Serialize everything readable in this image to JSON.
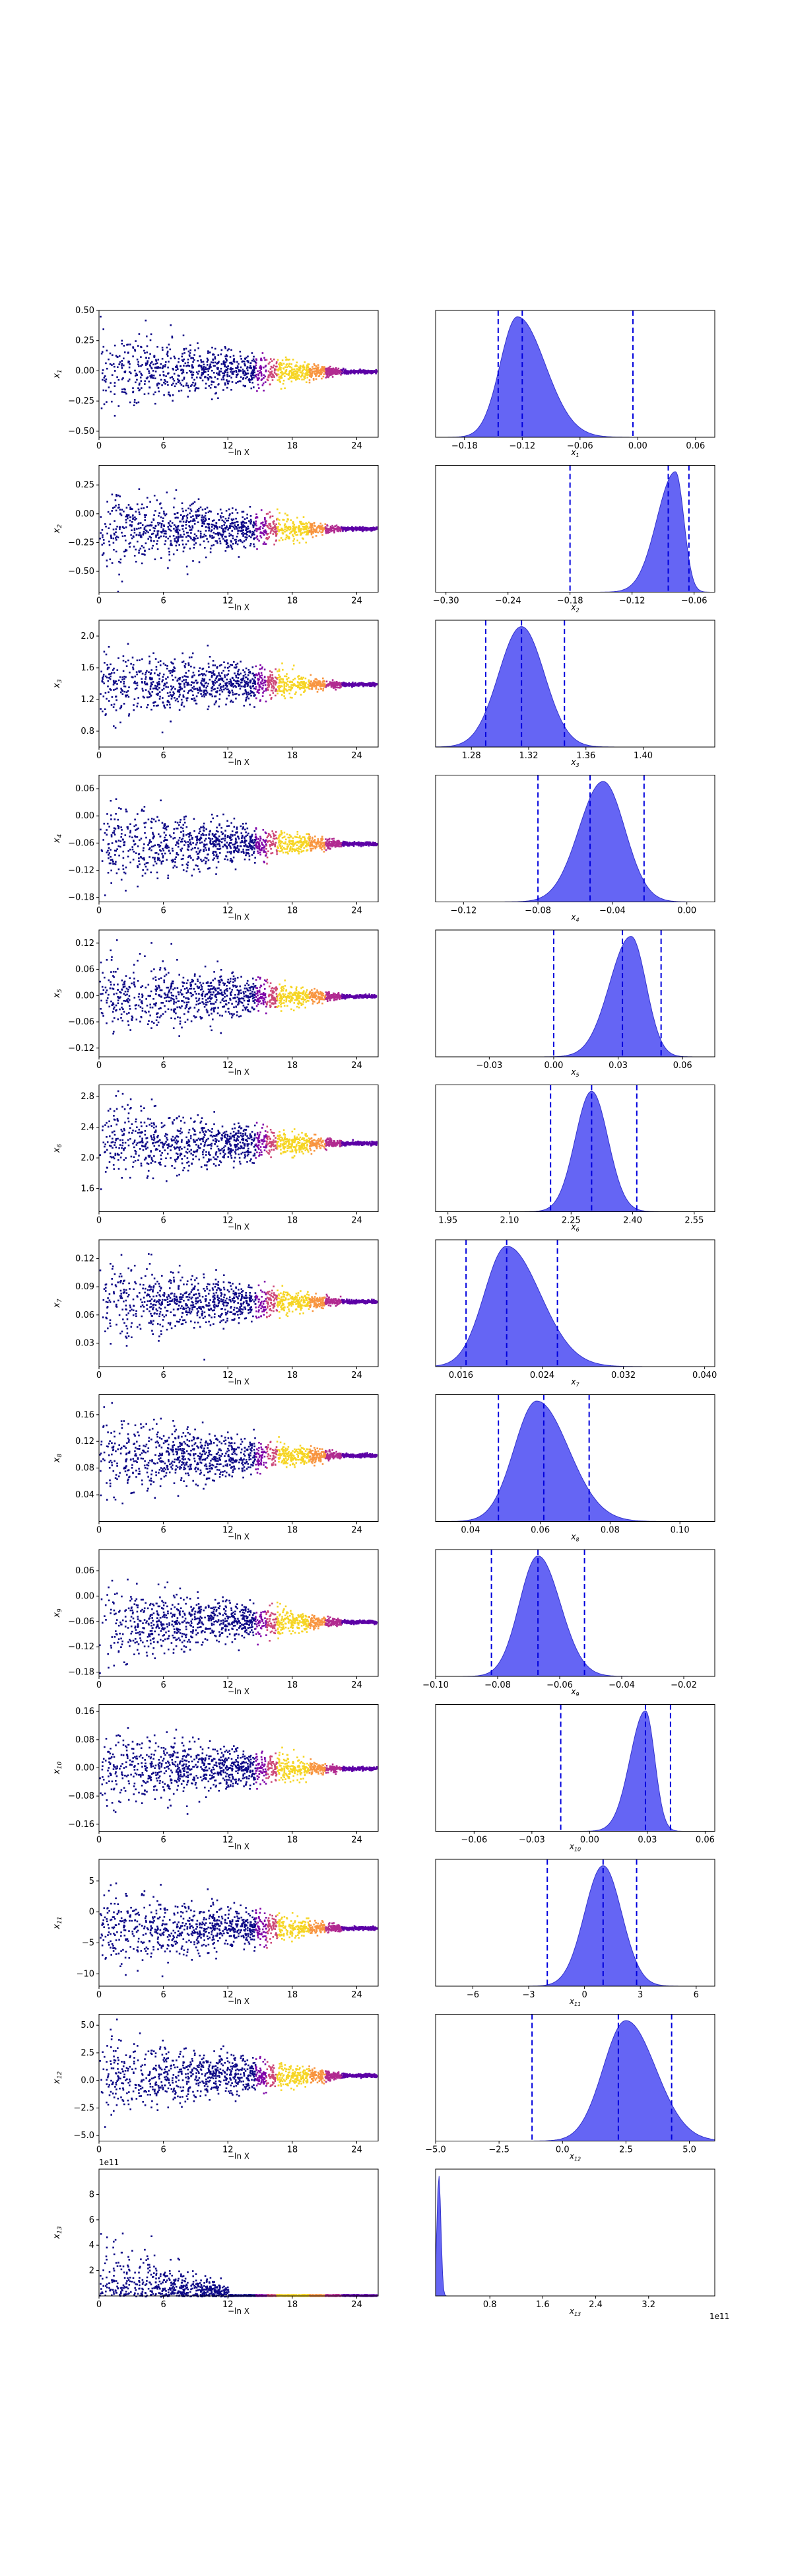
{
  "chart_data": {
    "type": "nested-sampling-trace-and-posterior",
    "trace_xlabel": "−ln X",
    "trace_xticks": [
      0,
      6,
      12,
      18,
      24
    ],
    "trace_xlim": [
      0,
      26
    ],
    "colormap": "plasma",
    "quantile_line_color": "#0000dd",
    "posterior_fill_color": "#4a4af2",
    "params": [
      {
        "label": "x1",
        "sym": "x",
        "sub": "1",
        "trace_yticks": [
          "0.50",
          "0.25",
          "0.00",
          "−0.25",
          "−0.50"
        ],
        "trace_ylim": [
          -0.55,
          0.5
        ],
        "trace_yvals": [
          0.5,
          0.25,
          0,
          -0.25,
          -0.5
        ],
        "post_xticks": [
          "−0.18",
          "−0.12",
          "−0.06",
          "0.00",
          "0.06"
        ],
        "post_xvals": [
          -0.18,
          -0.12,
          -0.06,
          0,
          0.06
        ],
        "post_xlim": [
          -0.21,
          0.08
        ],
        "mode": -0.125,
        "spread": 0.018,
        "skew": 1.6,
        "quantiles": [
          -0.145,
          -0.12,
          -0.005
        ],
        "offset": 0
      },
      {
        "label": "x2",
        "sym": "x",
        "sub": "2",
        "trace_yticks": [
          "0.25",
          "0.00",
          "−0.25",
          "−0.50"
        ],
        "trace_ylim": [
          -0.68,
          0.42
        ],
        "trace_yvals": [
          0.25,
          0,
          -0.25,
          -0.5
        ],
        "post_xticks": [
          "−0.30",
          "−0.24",
          "−0.18",
          "−0.12",
          "−0.06"
        ],
        "post_xvals": [
          -0.3,
          -0.24,
          -0.18,
          -0.12,
          -0.06
        ],
        "post_xlim": [
          -0.31,
          -0.04
        ],
        "mode": -0.078,
        "spread": 0.018,
        "skew": 0.45,
        "quantiles": [
          -0.18,
          -0.085,
          -0.065
        ],
        "offset": 0
      },
      {
        "label": "x3",
        "sym": "x",
        "sub": "3",
        "trace_yticks": [
          "2.0",
          "1.6",
          "1.2",
          "0.8"
        ],
        "trace_ylim": [
          0.6,
          2.2
        ],
        "trace_yvals": [
          2.0,
          1.6,
          1.2,
          0.8
        ],
        "post_xticks": [
          "1.28",
          "1.32",
          "1.36",
          "1.40"
        ],
        "post_xvals": [
          1.28,
          1.32,
          1.36,
          1.4
        ],
        "post_xlim": [
          1.255,
          1.45
        ],
        "mode": 1.315,
        "spread": 0.016,
        "skew": 1.0,
        "quantiles": [
          1.29,
          1.315,
          1.345
        ],
        "offset": 0
      },
      {
        "label": "x4",
        "sym": "x",
        "sub": "4",
        "trace_yticks": [
          "0.06",
          "0.00",
          "−0.06",
          "−0.12",
          "−0.18"
        ],
        "trace_ylim": [
          -0.19,
          0.09
        ],
        "trace_yvals": [
          0.06,
          0,
          -0.06,
          -0.12,
          -0.18
        ],
        "post_xticks": [
          "−0.12",
          "−0.08",
          "−0.04",
          "0.00"
        ],
        "post_xvals": [
          -0.12,
          -0.08,
          -0.04,
          0
        ],
        "post_xlim": [
          -0.135,
          0.015
        ],
        "mode": -0.045,
        "spread": 0.013,
        "skew": 0.9,
        "quantiles": [
          -0.08,
          -0.052,
          -0.023
        ],
        "offset": 0
      },
      {
        "label": "x5",
        "sym": "x",
        "sub": "5",
        "trace_yticks": [
          "0.12",
          "0.06",
          "0.00",
          "−0.06",
          "−0.12"
        ],
        "trace_ylim": [
          -0.14,
          0.15
        ],
        "trace_yvals": [
          0.12,
          0.06,
          0,
          -0.06,
          -0.12
        ],
        "post_xticks": [
          "−0.03",
          "0.00",
          "0.03",
          "0.06"
        ],
        "post_xvals": [
          -0.03,
          0,
          0.03,
          0.06
        ],
        "post_xlim": [
          -0.055,
          0.075
        ],
        "mode": 0.036,
        "spread": 0.01,
        "skew": 0.7,
        "quantiles": [
          0.0,
          0.032,
          0.05
        ],
        "offset": 0
      },
      {
        "label": "x6",
        "sym": "x",
        "sub": "6",
        "trace_yticks": [
          "2.8",
          "2.4",
          "2.0",
          "1.6"
        ],
        "trace_ylim": [
          1.3,
          2.95
        ],
        "trace_yvals": [
          2.8,
          2.4,
          2.0,
          1.6
        ],
        "post_xticks": [
          "1.95",
          "2.10",
          "2.25",
          "2.40",
          "2.55"
        ],
        "post_xvals": [
          1.95,
          2.1,
          2.25,
          2.4,
          2.55
        ],
        "post_xlim": [
          1.92,
          2.6
        ],
        "mode": 2.3,
        "spread": 0.04,
        "skew": 1.0,
        "quantiles": [
          2.2,
          2.3,
          2.41
        ],
        "offset": 0
      },
      {
        "label": "x7",
        "sym": "x",
        "sub": "7",
        "trace_yticks": [
          "0.12",
          "0.09",
          "0.06",
          "0.03"
        ],
        "trace_ylim": [
          0.005,
          0.14
        ],
        "trace_yvals": [
          0.12,
          0.09,
          0.06,
          0.03
        ],
        "post_xticks": [
          "0.016",
          "0.024",
          "0.032",
          "0.040"
        ],
        "post_xvals": [
          0.016,
          0.024,
          0.032,
          0.04
        ],
        "post_xlim": [
          0.0135,
          0.041
        ],
        "mode": 0.0205,
        "spread": 0.0022,
        "skew": 1.5,
        "quantiles": [
          0.0165,
          0.0205,
          0.0255
        ],
        "offset": 0
      },
      {
        "label": "x8",
        "sym": "x",
        "sub": "8",
        "trace_yticks": [
          "0.16",
          "0.12",
          "0.08",
          "0.04"
        ],
        "trace_ylim": [
          0.0,
          0.19
        ],
        "trace_yvals": [
          0.16,
          0.12,
          0.08,
          0.04
        ],
        "post_xticks": [
          "0.04",
          "0.06",
          "0.08",
          "0.10"
        ],
        "post_xvals": [
          0.04,
          0.06,
          0.08,
          0.1
        ],
        "post_xlim": [
          0.03,
          0.11
        ],
        "mode": 0.059,
        "spread": 0.0065,
        "skew": 1.4,
        "quantiles": [
          0.048,
          0.061,
          0.074
        ],
        "offset": 0
      },
      {
        "label": "x9",
        "sym": "x",
        "sub": "9",
        "trace_yticks": [
          "0.06",
          "0.00",
          "−0.06",
          "−0.12",
          "−0.18"
        ],
        "trace_ylim": [
          -0.19,
          0.11
        ],
        "trace_yvals": [
          0.06,
          0,
          -0.06,
          -0.12,
          -0.18
        ],
        "post_xticks": [
          "−0.10",
          "−0.08",
          "−0.06",
          "−0.04",
          "−0.02"
        ],
        "post_xvals": [
          -0.1,
          -0.08,
          -0.06,
          -0.04,
          -0.02
        ],
        "post_xlim": [
          -0.1,
          -0.01
        ],
        "mode": -0.067,
        "spread": 0.006,
        "skew": 1.2,
        "quantiles": [
          -0.082,
          -0.067,
          -0.052
        ],
        "offset": 0
      },
      {
        "label": "x10",
        "sym": "x",
        "sub": "10",
        "trace_yticks": [
          "0.16",
          "0.08",
          "0.00",
          "−0.08",
          "−0.16"
        ],
        "trace_ylim": [
          -0.18,
          0.18
        ],
        "trace_yvals": [
          0.16,
          0.08,
          0,
          -0.08,
          -0.16
        ],
        "post_xticks": [
          "−0.06",
          "−0.03",
          "0.00",
          "0.03",
          "0.06"
        ],
        "post_xvals": [
          -0.06,
          -0.03,
          0,
          0.03,
          0.06
        ],
        "post_xlim": [
          -0.08,
          0.065
        ],
        "mode": 0.029,
        "spread": 0.008,
        "skew": 0.6,
        "quantiles": [
          -0.015,
          0.029,
          0.042
        ],
        "offset": 0
      },
      {
        "label": "x11",
        "sym": "x",
        "sub": "11",
        "trace_yticks": [
          "5",
          "0",
          "−5",
          "−10"
        ],
        "trace_ylim": [
          -12,
          8.5
        ],
        "trace_yvals": [
          5,
          0,
          -5,
          -10
        ],
        "post_xticks": [
          "−6",
          "−3",
          "0",
          "3",
          "6"
        ],
        "post_xvals": [
          -6,
          -3,
          0,
          3,
          6
        ],
        "post_xlim": [
          -8,
          7
        ],
        "mode": 1.0,
        "spread": 1.0,
        "skew": 1.0,
        "quantiles": [
          -2.0,
          1.0,
          2.8
        ],
        "offset": 0
      },
      {
        "label": "x12",
        "sym": "x",
        "sub": "12",
        "trace_yticks": [
          "5.0",
          "2.5",
          "0.0",
          "−2.5",
          "−5.0"
        ],
        "trace_ylim": [
          -5.5,
          6.0
        ],
        "trace_yvals": [
          5.0,
          2.5,
          0,
          -2.5,
          -5.0
        ],
        "post_xticks": [
          "−5.0",
          "−2.5",
          "0.0",
          "2.5",
          "5.0"
        ],
        "post_xvals": [
          -5.0,
          -2.5,
          0,
          2.5,
          5.0
        ],
        "post_xlim": [
          -5.0,
          6.0
        ],
        "mode": 2.5,
        "spread": 0.9,
        "skew": 1.3,
        "quantiles": [
          -1.2,
          2.2,
          4.3
        ],
        "offset": 0
      },
      {
        "label": "x13",
        "sym": "x",
        "sub": "13",
        "trace_yticks": [
          "8",
          "6",
          "4",
          "2"
        ],
        "trace_ylim": [
          0,
          10
        ],
        "trace_yvals": [
          8,
          6,
          4,
          2
        ],
        "post_xticks": [
          "0.8",
          "1.6",
          "2.4",
          "3.2"
        ],
        "post_xvals": [
          0.8,
          1.6,
          2.4,
          3.2
        ],
        "post_xlim": [
          -0.02,
          4.2
        ],
        "mode": 0.03,
        "spread": 0.03,
        "skew": 1.0,
        "quantiles": [],
        "offset": 0,
        "trace_offset_label": "1e11",
        "post_offset_label": "1e11"
      }
    ]
  }
}
